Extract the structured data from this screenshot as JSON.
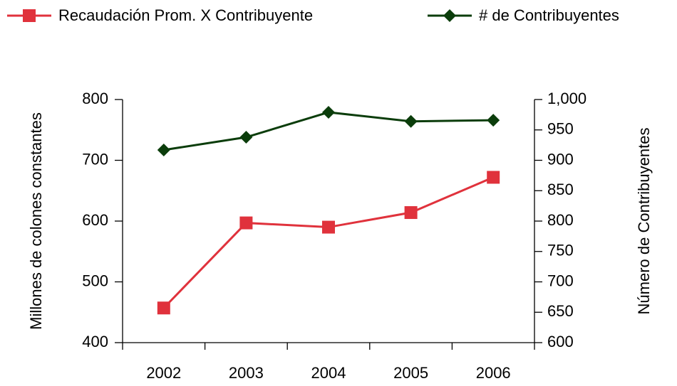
{
  "chart_data": {
    "type": "line",
    "categories": [
      "2002",
      "2003",
      "2004",
      "2005",
      "2006"
    ],
    "series": [
      {
        "name": "Recaudación Prom. X Contribuyente",
        "color": "#e0323c",
        "marker": "square",
        "values": [
          457,
          597,
          590,
          614,
          672
        ]
      },
      {
        "name": "# de Contribuyentes",
        "color": "#0b3d0b",
        "marker": "diamond",
        "axis": "y2",
        "values": [
          917,
          938,
          979,
          964,
          966
        ]
      }
    ],
    "ylabel": "Millones de colones constantes",
    "y2label": "Número de Contribuyentes",
    "ylim": [
      400,
      800
    ],
    "yticks": [
      400,
      500,
      600,
      700,
      800
    ],
    "y2lim": [
      600,
      1000
    ],
    "y2ticks": [
      600,
      650,
      700,
      750,
      800,
      850,
      900,
      950,
      {
        "value": 1000,
        "label": "1,000"
      }
    ],
    "legend": "top",
    "grid": false
  }
}
